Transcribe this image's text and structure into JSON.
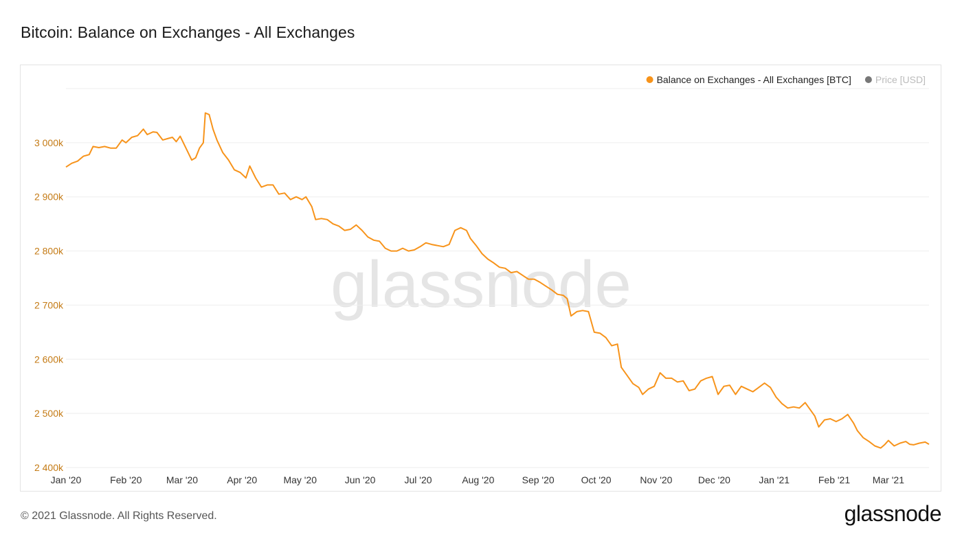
{
  "title": "Bitcoin: Balance on Exchanges - All Exchanges",
  "footer": {
    "copyright": "© 2021 Glassnode. All Rights Reserved.",
    "logo": "glassnode"
  },
  "watermark": "glassnode",
  "colors": {
    "series": "#f7931a",
    "axis_label": "#c47a14",
    "price_dot": "#777777",
    "price_text": "#bbbbbb",
    "grid": "#eeeeee"
  },
  "chart_data": {
    "type": "line",
    "title": "Bitcoin: Balance on Exchanges - All Exchanges",
    "xlabel": "",
    "ylabel": "",
    "ylim": [
      2400000,
      3100000
    ],
    "y_ticks": [
      {
        "value": 2400000,
        "label": "2 400k"
      },
      {
        "value": 2500000,
        "label": "2 500k"
      },
      {
        "value": 2600000,
        "label": "2 600k"
      },
      {
        "value": 2700000,
        "label": "2 700k"
      },
      {
        "value": 2800000,
        "label": "2 800k"
      },
      {
        "value": 2900000,
        "label": "2 900k"
      },
      {
        "value": 3000000,
        "label": "3 000k"
      }
    ],
    "x_range": [
      "2020-01-01",
      "2021-03-22"
    ],
    "x_ticks": [
      {
        "date": "2020-01-01",
        "label": "Jan '20"
      },
      {
        "date": "2020-02-01",
        "label": "Feb '20"
      },
      {
        "date": "2020-03-01",
        "label": "Mar '20"
      },
      {
        "date": "2020-04-01",
        "label": "Apr '20"
      },
      {
        "date": "2020-05-01",
        "label": "May '20"
      },
      {
        "date": "2020-06-01",
        "label": "Jun '20"
      },
      {
        "date": "2020-07-01",
        "label": "Jul '20"
      },
      {
        "date": "2020-08-01",
        "label": "Aug '20"
      },
      {
        "date": "2020-09-01",
        "label": "Sep '20"
      },
      {
        "date": "2020-10-01",
        "label": "Oct '20"
      },
      {
        "date": "2020-11-01",
        "label": "Nov '20"
      },
      {
        "date": "2020-12-01",
        "label": "Dec '20"
      },
      {
        "date": "2021-01-01",
        "label": "Jan '21"
      },
      {
        "date": "2021-02-01",
        "label": "Feb '21"
      },
      {
        "date": "2021-03-01",
        "label": "Mar '21"
      }
    ],
    "legend": {
      "placement": "top-right",
      "items": [
        {
          "label": "Balance on Exchanges - All Exchanges [BTC]",
          "active": true
        },
        {
          "label": "Price [USD]",
          "active": false
        }
      ]
    },
    "grid": true,
    "series": [
      {
        "name": "Balance on Exchanges - All Exchanges [BTC]",
        "points": [
          [
            "2020-01-01",
            2955000
          ],
          [
            "2020-01-04",
            2962000
          ],
          [
            "2020-01-07",
            2966000
          ],
          [
            "2020-01-10",
            2975000
          ],
          [
            "2020-01-13",
            2978000
          ],
          [
            "2020-01-15",
            2993000
          ],
          [
            "2020-01-18",
            2991000
          ],
          [
            "2020-01-21",
            2993000
          ],
          [
            "2020-01-24",
            2990000
          ],
          [
            "2020-01-27",
            2990000
          ],
          [
            "2020-01-30",
            3005000
          ],
          [
            "2020-02-01",
            3000000
          ],
          [
            "2020-02-04",
            3010000
          ],
          [
            "2020-02-07",
            3013000
          ],
          [
            "2020-02-10",
            3025000
          ],
          [
            "2020-02-12",
            3015000
          ],
          [
            "2020-02-15",
            3020000
          ],
          [
            "2020-02-17",
            3019000
          ],
          [
            "2020-02-20",
            3005000
          ],
          [
            "2020-02-23",
            3008000
          ],
          [
            "2020-02-25",
            3010000
          ],
          [
            "2020-02-27",
            3002000
          ],
          [
            "2020-02-29",
            3012000
          ],
          [
            "2020-03-03",
            2990000
          ],
          [
            "2020-03-06",
            2968000
          ],
          [
            "2020-03-08",
            2972000
          ],
          [
            "2020-03-10",
            2990000
          ],
          [
            "2020-03-12",
            3000000
          ],
          [
            "2020-03-13",
            3055000
          ],
          [
            "2020-03-15",
            3052000
          ],
          [
            "2020-03-17",
            3025000
          ],
          [
            "2020-03-19",
            3005000
          ],
          [
            "2020-03-22",
            2982000
          ],
          [
            "2020-03-25",
            2968000
          ],
          [
            "2020-03-28",
            2950000
          ],
          [
            "2020-03-31",
            2945000
          ],
          [
            "2020-04-03",
            2935000
          ],
          [
            "2020-04-05",
            2957000
          ],
          [
            "2020-04-08",
            2935000
          ],
          [
            "2020-04-11",
            2918000
          ],
          [
            "2020-04-14",
            2922000
          ],
          [
            "2020-04-17",
            2922000
          ],
          [
            "2020-04-20",
            2905000
          ],
          [
            "2020-04-23",
            2907000
          ],
          [
            "2020-04-26",
            2895000
          ],
          [
            "2020-04-29",
            2900000
          ],
          [
            "2020-05-02",
            2895000
          ],
          [
            "2020-05-04",
            2900000
          ],
          [
            "2020-05-07",
            2882000
          ],
          [
            "2020-05-09",
            2858000
          ],
          [
            "2020-05-12",
            2860000
          ],
          [
            "2020-05-15",
            2858000
          ],
          [
            "2020-05-18",
            2850000
          ],
          [
            "2020-05-21",
            2846000
          ],
          [
            "2020-05-24",
            2838000
          ],
          [
            "2020-05-27",
            2840000
          ],
          [
            "2020-05-30",
            2848000
          ],
          [
            "2020-06-02",
            2838000
          ],
          [
            "2020-06-05",
            2826000
          ],
          [
            "2020-06-08",
            2820000
          ],
          [
            "2020-06-11",
            2818000
          ],
          [
            "2020-06-14",
            2805000
          ],
          [
            "2020-06-17",
            2800000
          ],
          [
            "2020-06-20",
            2800000
          ],
          [
            "2020-06-23",
            2805000
          ],
          [
            "2020-06-26",
            2800000
          ],
          [
            "2020-06-29",
            2802000
          ],
          [
            "2020-07-02",
            2808000
          ],
          [
            "2020-07-05",
            2815000
          ],
          [
            "2020-07-08",
            2812000
          ],
          [
            "2020-07-11",
            2810000
          ],
          [
            "2020-07-14",
            2808000
          ],
          [
            "2020-07-17",
            2812000
          ],
          [
            "2020-07-20",
            2838000
          ],
          [
            "2020-07-23",
            2843000
          ],
          [
            "2020-07-26",
            2838000
          ],
          [
            "2020-07-28",
            2823000
          ],
          [
            "2020-07-31",
            2810000
          ],
          [
            "2020-08-03",
            2795000
          ],
          [
            "2020-08-06",
            2785000
          ],
          [
            "2020-08-09",
            2778000
          ],
          [
            "2020-08-12",
            2770000
          ],
          [
            "2020-08-15",
            2768000
          ],
          [
            "2020-08-18",
            2760000
          ],
          [
            "2020-08-21",
            2762000
          ],
          [
            "2020-08-24",
            2755000
          ],
          [
            "2020-08-27",
            2748000
          ],
          [
            "2020-08-30",
            2748000
          ],
          [
            "2020-09-02",
            2742000
          ],
          [
            "2020-09-05",
            2735000
          ],
          [
            "2020-09-08",
            2728000
          ],
          [
            "2020-09-11",
            2720000
          ],
          [
            "2020-09-14",
            2718000
          ],
          [
            "2020-09-16",
            2712000
          ],
          [
            "2020-09-18",
            2680000
          ],
          [
            "2020-09-21",
            2688000
          ],
          [
            "2020-09-24",
            2690000
          ],
          [
            "2020-09-27",
            2688000
          ],
          [
            "2020-09-30",
            2650000
          ],
          [
            "2020-10-03",
            2648000
          ],
          [
            "2020-10-06",
            2640000
          ],
          [
            "2020-10-09",
            2625000
          ],
          [
            "2020-10-12",
            2628000
          ],
          [
            "2020-10-14",
            2585000
          ],
          [
            "2020-10-17",
            2570000
          ],
          [
            "2020-10-20",
            2555000
          ],
          [
            "2020-10-23",
            2548000
          ],
          [
            "2020-10-25",
            2535000
          ],
          [
            "2020-10-28",
            2545000
          ],
          [
            "2020-10-31",
            2550000
          ],
          [
            "2020-11-03",
            2575000
          ],
          [
            "2020-11-06",
            2565000
          ],
          [
            "2020-11-09",
            2565000
          ],
          [
            "2020-11-12",
            2558000
          ],
          [
            "2020-11-15",
            2560000
          ],
          [
            "2020-11-18",
            2542000
          ],
          [
            "2020-11-21",
            2545000
          ],
          [
            "2020-11-24",
            2560000
          ],
          [
            "2020-11-27",
            2565000
          ],
          [
            "2020-11-30",
            2568000
          ],
          [
            "2020-12-03",
            2535000
          ],
          [
            "2020-12-06",
            2550000
          ],
          [
            "2020-12-09",
            2552000
          ],
          [
            "2020-12-12",
            2535000
          ],
          [
            "2020-12-15",
            2550000
          ],
          [
            "2020-12-18",
            2545000
          ],
          [
            "2020-12-21",
            2540000
          ],
          [
            "2020-12-24",
            2548000
          ],
          [
            "2020-12-27",
            2556000
          ],
          [
            "2020-12-30",
            2548000
          ],
          [
            "2021-01-02",
            2530000
          ],
          [
            "2021-01-05",
            2518000
          ],
          [
            "2021-01-08",
            2510000
          ],
          [
            "2021-01-11",
            2512000
          ],
          [
            "2021-01-14",
            2510000
          ],
          [
            "2021-01-17",
            2520000
          ],
          [
            "2021-01-20",
            2505000
          ],
          [
            "2021-01-22",
            2495000
          ],
          [
            "2021-01-24",
            2475000
          ],
          [
            "2021-01-27",
            2488000
          ],
          [
            "2021-01-30",
            2490000
          ],
          [
            "2021-02-02",
            2485000
          ],
          [
            "2021-02-05",
            2490000
          ],
          [
            "2021-02-08",
            2498000
          ],
          [
            "2021-02-11",
            2482000
          ],
          [
            "2021-02-13",
            2468000
          ],
          [
            "2021-02-16",
            2455000
          ],
          [
            "2021-02-19",
            2448000
          ],
          [
            "2021-02-22",
            2440000
          ],
          [
            "2021-02-25",
            2436000
          ],
          [
            "2021-02-27",
            2442000
          ],
          [
            "2021-03-01",
            2450000
          ],
          [
            "2021-03-04",
            2440000
          ],
          [
            "2021-03-07",
            2445000
          ],
          [
            "2021-03-10",
            2448000
          ],
          [
            "2021-03-12",
            2443000
          ],
          [
            "2021-03-14",
            2442000
          ],
          [
            "2021-03-17",
            2445000
          ],
          [
            "2021-03-20",
            2447000
          ],
          [
            "2021-03-22",
            2443000
          ]
        ]
      }
    ]
  }
}
